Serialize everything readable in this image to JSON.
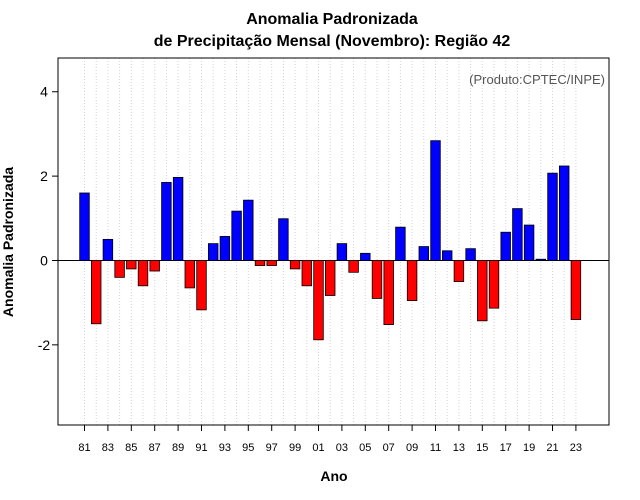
{
  "chart_data": {
    "type": "bar",
    "title_line1": "Anomalia Padronizada",
    "title_line2": "de Precipitação Mensal (Novembro): Região 42",
    "xlabel": "Ano",
    "ylabel": "Anomalia Padronizada",
    "credit": "(Produto:CPTEC/INPE)",
    "ylim": [
      -3.9,
      4.8
    ],
    "yticks": [
      -2,
      0,
      2,
      4
    ],
    "ytick_labels": [
      "-2",
      "0",
      "2",
      "4"
    ],
    "grid": "vertical dotted",
    "categories": [
      "81",
      "82",
      "83",
      "84",
      "85",
      "86",
      "87",
      "88",
      "89",
      "90",
      "91",
      "92",
      "93",
      "94",
      "95",
      "96",
      "97",
      "98",
      "99",
      "00",
      "01",
      "02",
      "03",
      "04",
      "05",
      "06",
      "07",
      "08",
      "09",
      "10",
      "11",
      "12",
      "13",
      "14",
      "15",
      "16",
      "17",
      "18",
      "19",
      "20",
      "21",
      "22",
      "23"
    ],
    "xtick_labels": [
      "81",
      "83",
      "85",
      "87",
      "89",
      "91",
      "93",
      "95",
      "97",
      "99",
      "01",
      "03",
      "05",
      "07",
      "09",
      "11",
      "13",
      "15",
      "17",
      "19",
      "21",
      "23"
    ],
    "values": [
      1.6,
      -1.5,
      0.5,
      -0.4,
      -0.2,
      -0.6,
      -0.25,
      1.85,
      1.97,
      -0.65,
      -1.17,
      0.4,
      0.57,
      1.17,
      1.43,
      -0.12,
      -0.12,
      0.99,
      -0.2,
      -0.6,
      -1.88,
      -0.83,
      0.4,
      -0.28,
      0.17,
      -0.9,
      -1.52,
      0.79,
      -0.95,
      0.33,
      2.84,
      0.23,
      -0.5,
      0.28,
      -1.43,
      -1.13,
      0.67,
      1.23,
      0.84,
      0.03,
      2.07,
      2.24,
      -1.4
    ],
    "colors": {
      "positive": "#0000ff",
      "negative": "#ff0000",
      "outline": "#000000",
      "grid": "#d3d3d3"
    }
  }
}
